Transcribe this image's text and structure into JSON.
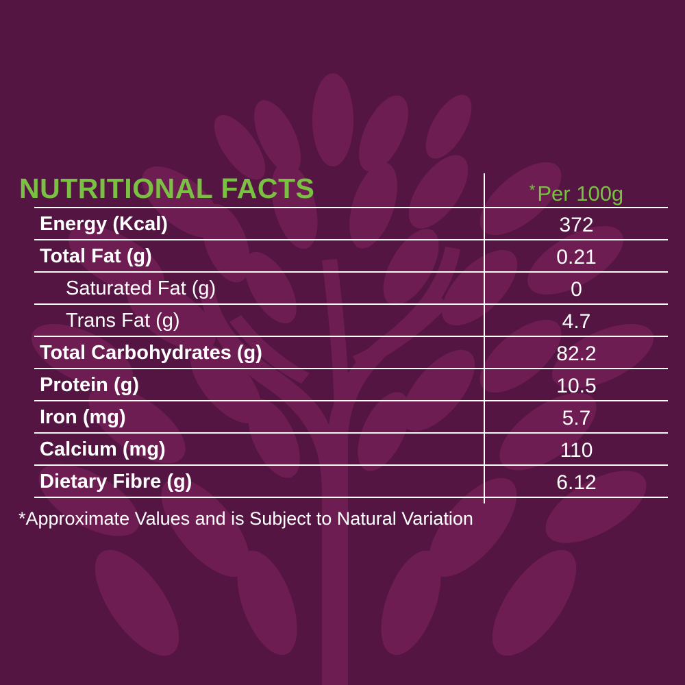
{
  "colors": {
    "background": "#541542",
    "tree": "#6e1d52",
    "heading": "#7ac143",
    "text": "#ffffff",
    "rules": "#ffffff"
  },
  "background_icon": "tree-icon",
  "table": {
    "title": "NUTRITIONAL FACTS",
    "per_star": "*",
    "per_label": "Per 100g",
    "rows": [
      {
        "label": "Energy (Kcal)",
        "value": "372",
        "indent": false
      },
      {
        "label": "Total Fat (g)",
        "value": "0.21",
        "indent": false
      },
      {
        "label": "Saturated Fat (g)",
        "value": "0",
        "indent": true
      },
      {
        "label": "Trans Fat (g)",
        "value": "4.7",
        "indent": true
      },
      {
        "label": "Total Carbohydrates (g)",
        "value": "82.2",
        "indent": false
      },
      {
        "label": "Protein (g)",
        "value": "10.5",
        "indent": false
      },
      {
        "label": "Iron (mg)",
        "value": "5.7",
        "indent": false
      },
      {
        "label": "Calcium (mg)",
        "value": "110",
        "indent": false
      },
      {
        "label": "Dietary Fibre (g)",
        "value": "6.12",
        "indent": false
      }
    ]
  },
  "footnote": "*Approximate Values and is Subject to Natural Variation"
}
